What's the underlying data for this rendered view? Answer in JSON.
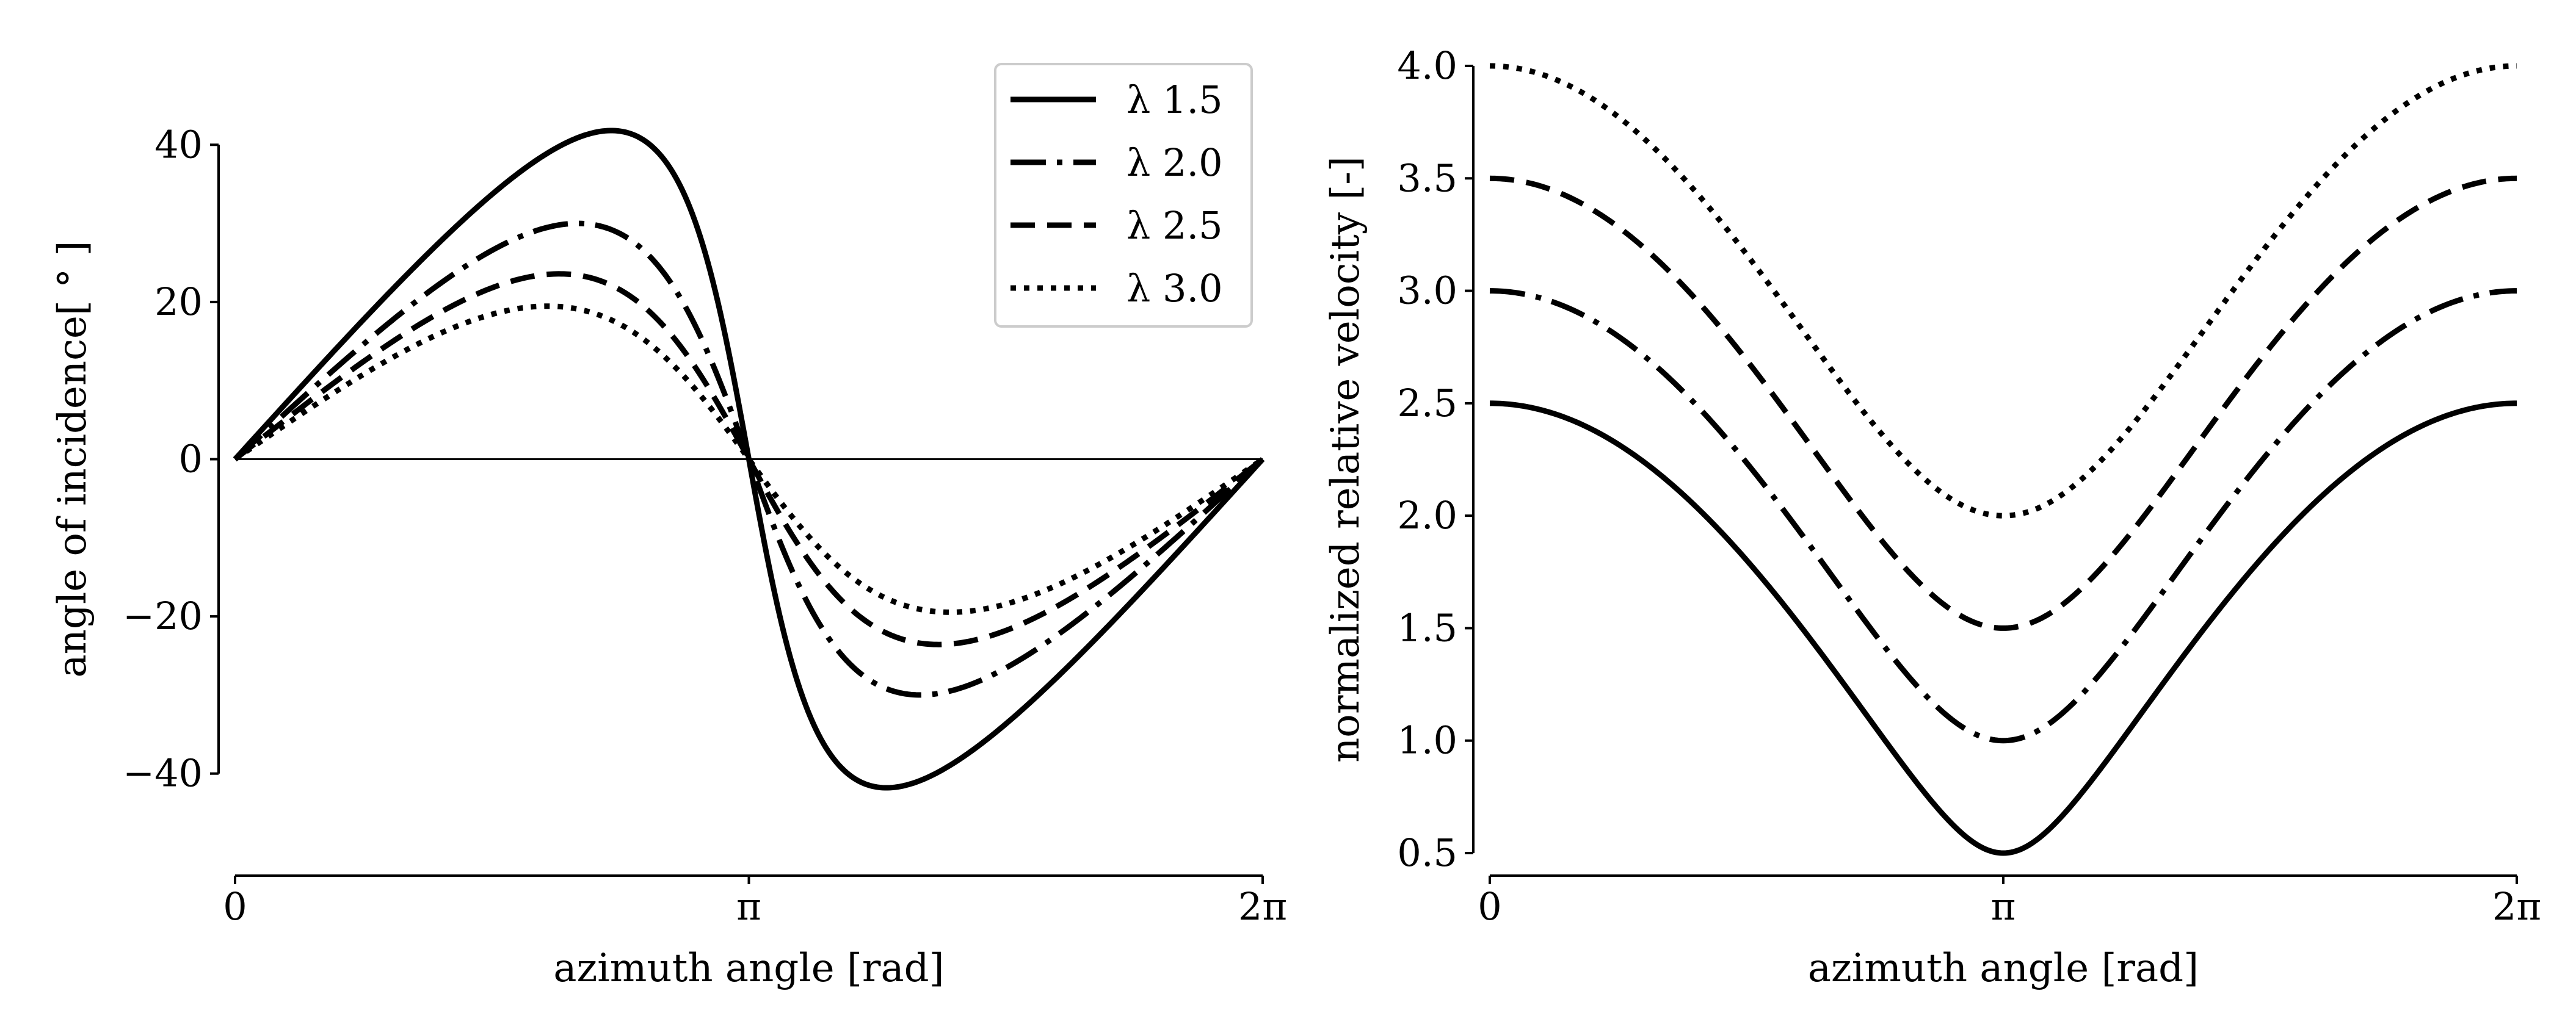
{
  "chart_data": [
    {
      "type": "line",
      "xlabel": "azimuth angle [rad]",
      "ylabel": "angle of incidence[ ° ]",
      "xlim": [
        0,
        6.283185307
      ],
      "ylim": [
        -46,
        46
      ],
      "xticks": [
        {
          "value": 0,
          "label": "0"
        },
        {
          "value": 3.141592654,
          "label": "π"
        },
        {
          "value": 6.283185307,
          "label": "2π"
        }
      ],
      "yticks": [
        {
          "value": 40,
          "label": "40"
        },
        {
          "value": 20,
          "label": "20"
        },
        {
          "value": 0,
          "label": "0"
        },
        {
          "value": -20,
          "label": "−20"
        },
        {
          "value": -40,
          "label": "−40"
        }
      ],
      "zero_line": true,
      "legend": {
        "position": "top-right"
      },
      "series": [
        {
          "name": "λ 1.5",
          "tsr": 1.5,
          "style": "solid",
          "formula": "atan(sin(theta)/(tsr+cos(theta)))"
        },
        {
          "name": "λ 2.0",
          "tsr": 2.0,
          "style": "dashdot",
          "formula": "atan(sin(theta)/(tsr+cos(theta)))"
        },
        {
          "name": "λ 2.5",
          "tsr": 2.5,
          "style": "dashed",
          "formula": "atan(sin(theta)/(tsr+cos(theta)))"
        },
        {
          "name": "λ 3.0",
          "tsr": 3.0,
          "style": "dotted",
          "formula": "atan(sin(theta)/(tsr+cos(theta)))"
        }
      ],
      "key_points": {
        "λ 1.5": {
          "max": 41.8,
          "min": -41.8
        },
        "λ 2.0": {
          "max": 30.0,
          "min": -30.0
        },
        "λ 2.5": {
          "max": 23.6,
          "min": -23.6
        },
        "λ 3.0": {
          "max": 19.5,
          "min": -19.5
        }
      }
    },
    {
      "type": "line",
      "xlabel": "azimuth angle [rad]",
      "ylabel": "normalized relative velocity [-]",
      "xlim": [
        0,
        6.283185307
      ],
      "ylim": [
        0.5,
        4.0
      ],
      "xticks": [
        {
          "value": 0,
          "label": "0"
        },
        {
          "value": 3.141592654,
          "label": "π"
        },
        {
          "value": 6.283185307,
          "label": "2π"
        }
      ],
      "yticks": [
        {
          "value": 4.0,
          "label": "4.0"
        },
        {
          "value": 3.5,
          "label": "3.5"
        },
        {
          "value": 3.0,
          "label": "3.0"
        },
        {
          "value": 2.5,
          "label": "2.5"
        },
        {
          "value": 2.0,
          "label": "2.0"
        },
        {
          "value": 1.5,
          "label": "1.5"
        },
        {
          "value": 1.0,
          "label": "1.0"
        },
        {
          "value": 0.5,
          "label": "0.5"
        }
      ],
      "series": [
        {
          "name": "λ 1.5",
          "tsr": 1.5,
          "style": "solid",
          "formula": "sqrt(tsr^2+2*tsr*cos(theta)+1)",
          "start": 2.5,
          "min": 0.5
        },
        {
          "name": "λ 2.0",
          "tsr": 2.0,
          "style": "dashdot",
          "formula": "sqrt(tsr^2+2*tsr*cos(theta)+1)",
          "start": 3.0,
          "min": 1.0
        },
        {
          "name": "λ 2.5",
          "tsr": 2.5,
          "style": "dashed",
          "formula": "sqrt(tsr^2+2*tsr*cos(theta)+1)",
          "start": 3.5,
          "min": 1.5
        },
        {
          "name": "λ 3.0",
          "tsr": 3.0,
          "style": "dotted",
          "formula": "sqrt(tsr^2+2*tsr*cos(theta)+1)",
          "start": 4.0,
          "min": 2.0
        }
      ]
    }
  ]
}
